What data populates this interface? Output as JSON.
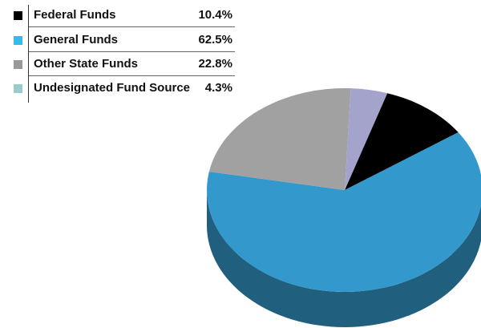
{
  "chart_data": {
    "type": "pie",
    "title": "",
    "legend_position": "top-left",
    "slices": [
      {
        "label": "Federal Funds",
        "value": 10.4,
        "value_label": "10.4%",
        "color": "#000000",
        "legend_color": "#000000"
      },
      {
        "label": "General Funds",
        "value": 62.5,
        "value_label": "62.5%",
        "color": "#3399cc",
        "legend_color": "#33bbee"
      },
      {
        "label": "Other State Funds",
        "value": 22.8,
        "value_label": "22.8%",
        "color": "#a1a1a1",
        "legend_color": "#999999"
      },
      {
        "label": "Undesignated Fund Source",
        "value": 4.3,
        "value_label": "4.3%",
        "color": "#a3a3cc",
        "legend_color": "#99cccc"
      }
    ]
  }
}
